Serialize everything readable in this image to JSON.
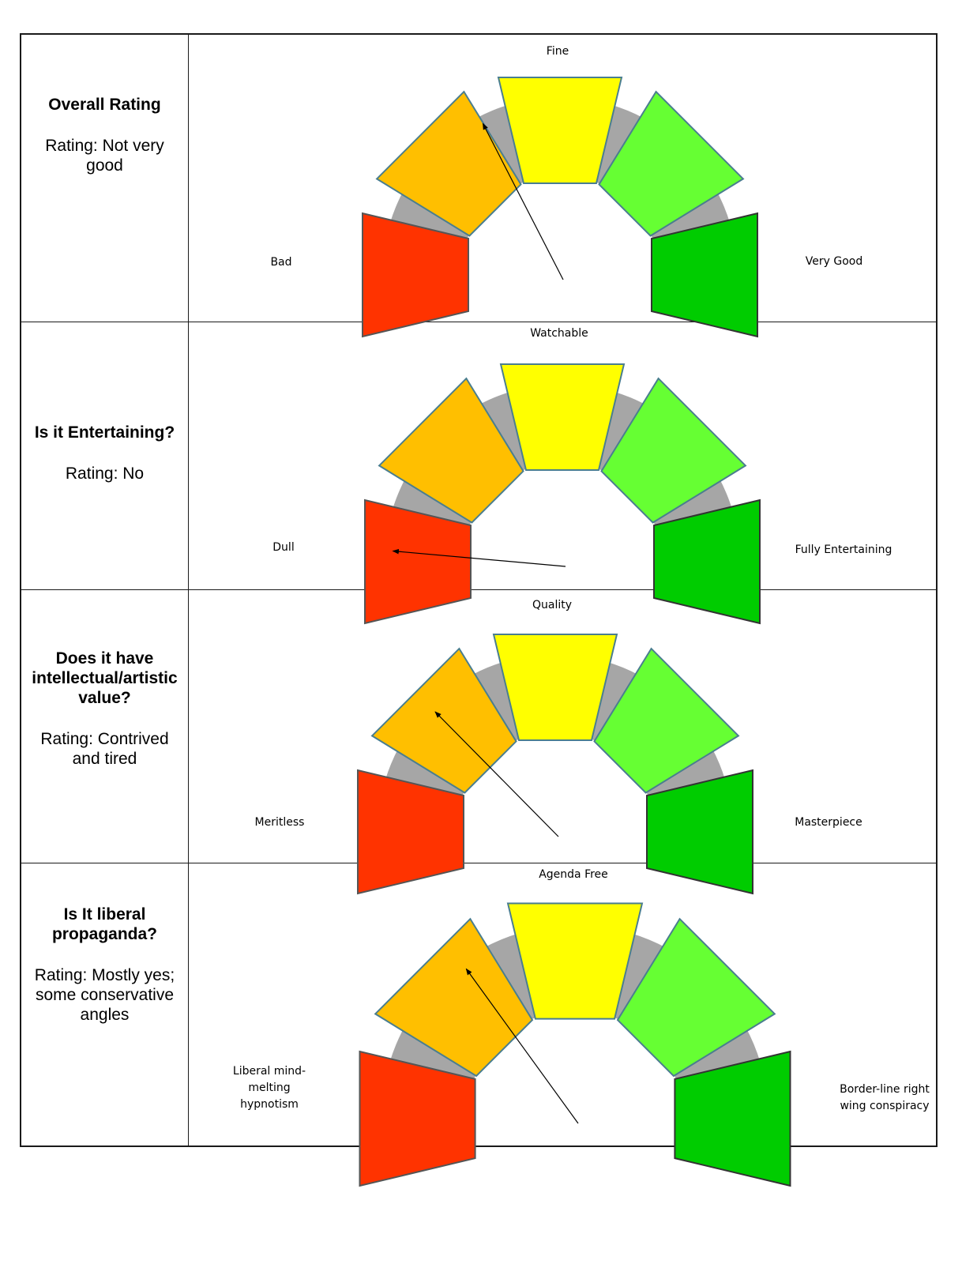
{
  "colors": {
    "red": "#ff3300",
    "orange": "#ffbf00",
    "yellow": "#ffff00",
    "light_green": "#66ff33",
    "green": "#00cc00",
    "track": "#a6a6a6",
    "pointer": "#000000"
  },
  "rows": [
    {
      "question": "Overall Rating",
      "rating": "Rating: Not very good",
      "top_label": "Fine",
      "left_label": "Bad",
      "right_label": "Very Good",
      "pointer_level": 0.35
    },
    {
      "question": "Is it Entertaining?",
      "rating": "Rating: No",
      "top_label": "Watchable",
      "left_label": "Dull",
      "right_label": "Fully Entertaining",
      "pointer_level": 0.02
    },
    {
      "question": "Does it have intellectual/artistic value?",
      "rating": "Rating:  Contrived and tired",
      "top_label": "Quality",
      "left_label": "Meritless",
      "right_label": "Masterpiece",
      "pointer_level": 0.25
    },
    {
      "question": "Is It liberal propaganda?",
      "rating": "Rating: Mostly yes; some conservative angles",
      "top_label": "Agenda Free",
      "left_label": "Liberal mind-melting hypnotism",
      "right_label": "Border-line right wing conspiracy",
      "pointer_level": 0.3
    }
  ]
}
